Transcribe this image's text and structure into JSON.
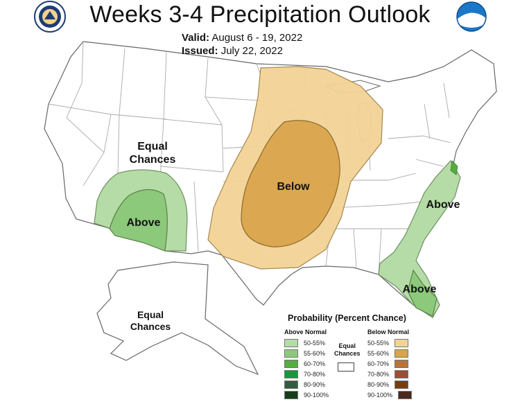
{
  "header": {
    "title": "Weeks 3-4 Precipitation Outlook",
    "valid_label": "Valid:",
    "valid_value": "August 6 - 19, 2022",
    "issued_label": "Issued:",
    "issued_value": "July 22, 2022"
  },
  "map_labels": {
    "equal_chances_west_line1": "Equal",
    "equal_chances_west_line2": "Chances",
    "above_southwest": "Above",
    "below_central": "Below",
    "above_carolinas": "Above",
    "above_florida": "Above",
    "equal_chances_alaska_line1": "Equal",
    "equal_chances_alaska_line2": "Chances"
  },
  "legend": {
    "title": "Probability (Percent Chance)",
    "above_heading": "Above Normal",
    "below_heading": "Below Normal",
    "equal_line1": "Equal",
    "equal_line2": "Chances",
    "above_items": [
      {
        "label": "50-55%",
        "color": "#b5dca6"
      },
      {
        "label": "55-60%",
        "color": "#8cc97a"
      },
      {
        "label": "60-70%",
        "color": "#55ad42"
      },
      {
        "label": "70-80%",
        "color": "#149a3c"
      },
      {
        "label": "80-90%",
        "color": "#2e5e3d"
      },
      {
        "label": "90-100%",
        "color": "#153d1a"
      }
    ],
    "below_items": [
      {
        "label": "50-55%",
        "color": "#f2d396"
      },
      {
        "label": "55-60%",
        "color": "#d9a44c"
      },
      {
        "label": "60-70%",
        "color": "#b9733a"
      },
      {
        "label": "70-80%",
        "color": "#9c4e35"
      },
      {
        "label": "80-90%",
        "color": "#7a3e0b"
      },
      {
        "label": "90-100%",
        "color": "#4a2a1e"
      }
    ]
  },
  "colors": {
    "above_50_55": "#b5dca6",
    "above_55_60": "#8cc97a",
    "below_50_55": "#f2d396",
    "below_55_60": "#d9a44c",
    "state_lines": "#aaaaaa",
    "country_outline": "#666666"
  },
  "logos": {
    "left": "commerce-department-seal-icon",
    "right": "noaa-logo-icon"
  }
}
